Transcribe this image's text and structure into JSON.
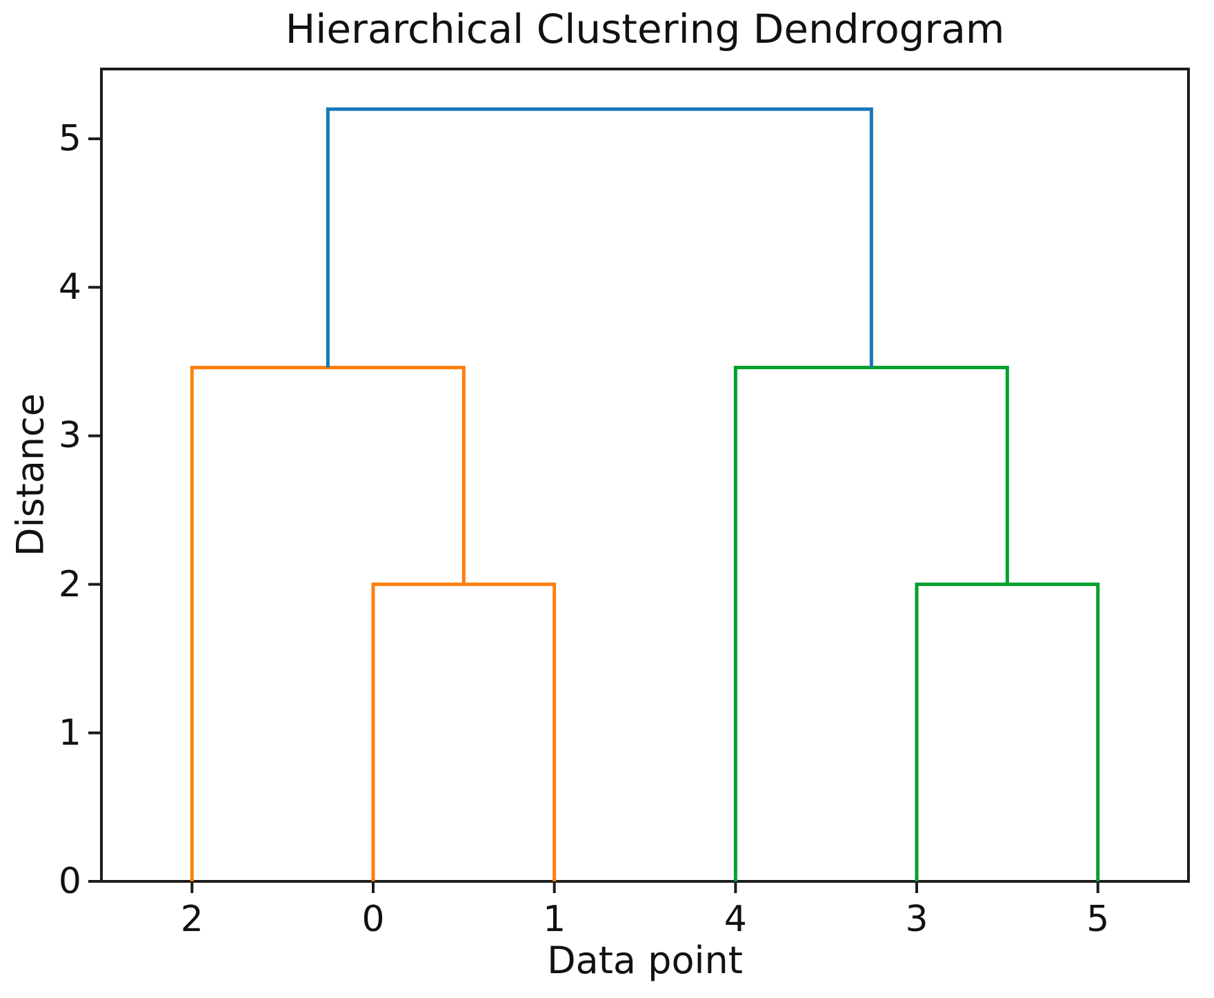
{
  "chart_data": {
    "type": "dendrogram",
    "title": "Hierarchical Clustering Dendrogram",
    "xlabel": "Data point",
    "ylabel": "Distance",
    "grid": false,
    "legend": "none",
    "leaves": [
      {
        "label": "2",
        "x": 5
      },
      {
        "label": "0",
        "x": 15
      },
      {
        "label": "1",
        "x": 25
      },
      {
        "label": "4",
        "x": 35
      },
      {
        "label": "3",
        "x": 45
      },
      {
        "label": "5",
        "x": 55
      }
    ],
    "xlim": [
      0,
      60
    ],
    "ylim": [
      0,
      5.47
    ],
    "yticks": [
      0,
      1,
      2,
      3,
      4,
      5
    ],
    "links": [
      {
        "name": "merge-0-1",
        "x1": 15,
        "base1": 0,
        "x2": 25,
        "base2": 0,
        "height": 2.0,
        "color_key": "cluster1"
      },
      {
        "name": "merge-2-with-01",
        "x1": 5,
        "base1": 0,
        "x2": 20,
        "base2": 2.0,
        "height": 3.46,
        "color_key": "cluster1"
      },
      {
        "name": "merge-3-5",
        "x1": 45,
        "base1": 0,
        "x2": 55,
        "base2": 0,
        "height": 2.0,
        "color_key": "cluster2"
      },
      {
        "name": "merge-4-with-35",
        "x1": 35,
        "base1": 0,
        "x2": 50,
        "base2": 2.0,
        "height": 3.46,
        "color_key": "cluster2"
      },
      {
        "name": "root-merge",
        "x1": 12.5,
        "base1": 3.46,
        "x2": 42.5,
        "base2": 3.46,
        "height": 5.2,
        "color_key": "root"
      }
    ],
    "colors": {
      "root": "#1578b6",
      "cluster1": "#ff7f0e",
      "cluster2": "#00a02c",
      "axis": "#1c1c1c",
      "text": "#111111",
      "background": "#ffffff"
    }
  }
}
